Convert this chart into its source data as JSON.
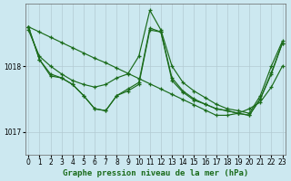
{
  "title": "Graphe pression niveau de la mer (hPa)",
  "bg_color": "#cce8f0",
  "line_color": "#1a6b1a",
  "grid_color": "#b0c8d0",
  "ylim": [
    1016.65,
    1018.95
  ],
  "yticks": [
    1017,
    1018
  ],
  "xlim": [
    -0.3,
    23.3
  ],
  "xticks": [
    0,
    1,
    2,
    3,
    4,
    5,
    6,
    7,
    8,
    9,
    10,
    11,
    12,
    13,
    14,
    15,
    16,
    17,
    18,
    19,
    20,
    21,
    22,
    23
  ],
  "series": [
    [
      1018.6,
      1018.52,
      1018.44,
      1018.36,
      1018.28,
      1018.2,
      1018.12,
      1018.05,
      1017.97,
      1017.89,
      1017.81,
      1017.73,
      1017.65,
      1017.57,
      1017.49,
      1017.41,
      1017.33,
      1017.25,
      1017.25,
      1017.28,
      1017.35,
      1017.45,
      1017.68,
      1018.0
    ],
    [
      1018.55,
      1018.15,
      1018.0,
      1017.88,
      1017.78,
      1017.72,
      1017.68,
      1017.72,
      1017.82,
      1017.88,
      1018.15,
      1018.85,
      1018.55,
      1018.0,
      1017.75,
      1017.62,
      1017.52,
      1017.42,
      1017.35,
      1017.32,
      1017.28,
      1017.55,
      1018.0,
      1018.38
    ],
    [
      1018.6,
      1018.1,
      1017.85,
      1017.82,
      1017.72,
      1017.55,
      1017.35,
      1017.32,
      1017.55,
      1017.62,
      1017.72,
      1018.55,
      1018.52,
      1017.78,
      1017.6,
      1017.48,
      1017.42,
      1017.35,
      1017.32,
      1017.28,
      1017.25,
      1017.5,
      1017.88,
      1018.35
    ],
    [
      1018.6,
      1018.1,
      1017.88,
      1017.82,
      1017.72,
      1017.55,
      1017.35,
      1017.32,
      1017.55,
      1017.65,
      1017.75,
      1018.58,
      1018.52,
      1017.82,
      1017.62,
      1017.5,
      1017.42,
      1017.35,
      1017.32,
      1017.28,
      1017.25,
      1017.5,
      1017.9,
      1018.35
    ]
  ],
  "tick_fontsize": 5.5,
  "title_fontsize": 6.5,
  "marker_size": 3.0,
  "linewidth": 0.85
}
